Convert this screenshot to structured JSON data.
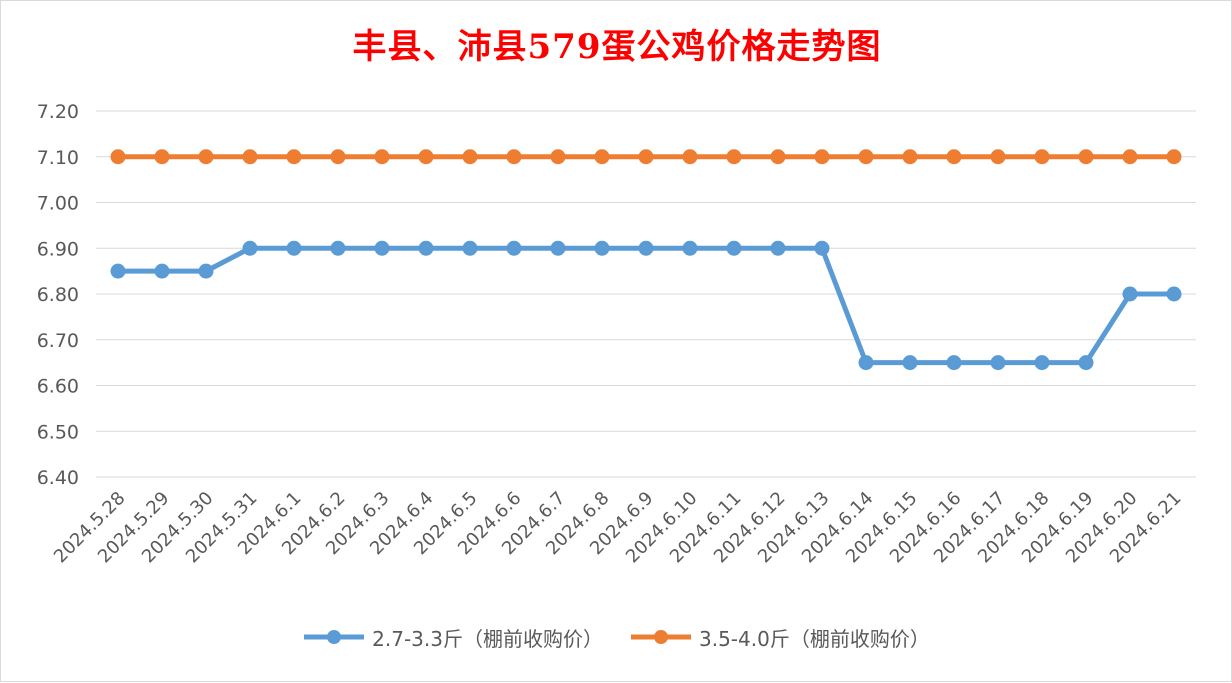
{
  "chart_data": {
    "type": "line",
    "title": "丰县、沛县579蛋公鸡价格走势图",
    "categories": [
      "2024.5.28",
      "2024.5.29",
      "2024.5.30",
      "2024.5.31",
      "2024.6.1",
      "2024.6.2",
      "2024.6.3",
      "2024.6.4",
      "2024.6.5",
      "2024.6.6",
      "2024.6.7",
      "2024.6.8",
      "2024.6.9",
      "2024.6.10",
      "2024.6.11",
      "2024.6.12",
      "2024.6.13",
      "2024.6.14",
      "2024.6.15",
      "2024.6.16",
      "2024.6.17",
      "2024.6.18",
      "2024.6.19",
      "2024.6.20",
      "2024.6.21"
    ],
    "series": [
      {
        "name": "2.7-3.3斤（棚前收购价）",
        "color": "#5b9bd5",
        "values": [
          6.85,
          6.85,
          6.85,
          6.9,
          6.9,
          6.9,
          6.9,
          6.9,
          6.9,
          6.9,
          6.9,
          6.9,
          6.9,
          6.9,
          6.9,
          6.9,
          6.9,
          6.65,
          6.65,
          6.65,
          6.65,
          6.65,
          6.65,
          6.8,
          6.8
        ]
      },
      {
        "name": "3.5-4.0斤（棚前收购价）",
        "color": "#ed7d31",
        "values": [
          7.1,
          7.1,
          7.1,
          7.1,
          7.1,
          7.1,
          7.1,
          7.1,
          7.1,
          7.1,
          7.1,
          7.1,
          7.1,
          7.1,
          7.1,
          7.1,
          7.1,
          7.1,
          7.1,
          7.1,
          7.1,
          7.1,
          7.1,
          7.1,
          7.1
        ]
      }
    ],
    "ylim": [
      6.4,
      7.2
    ],
    "yticks": [
      "6.40",
      "6.50",
      "6.60",
      "6.70",
      "6.80",
      "6.90",
      "7.00",
      "7.10",
      "7.20"
    ],
    "xlabel": "",
    "ylabel": "",
    "grid": true,
    "legend_position": "bottom"
  }
}
